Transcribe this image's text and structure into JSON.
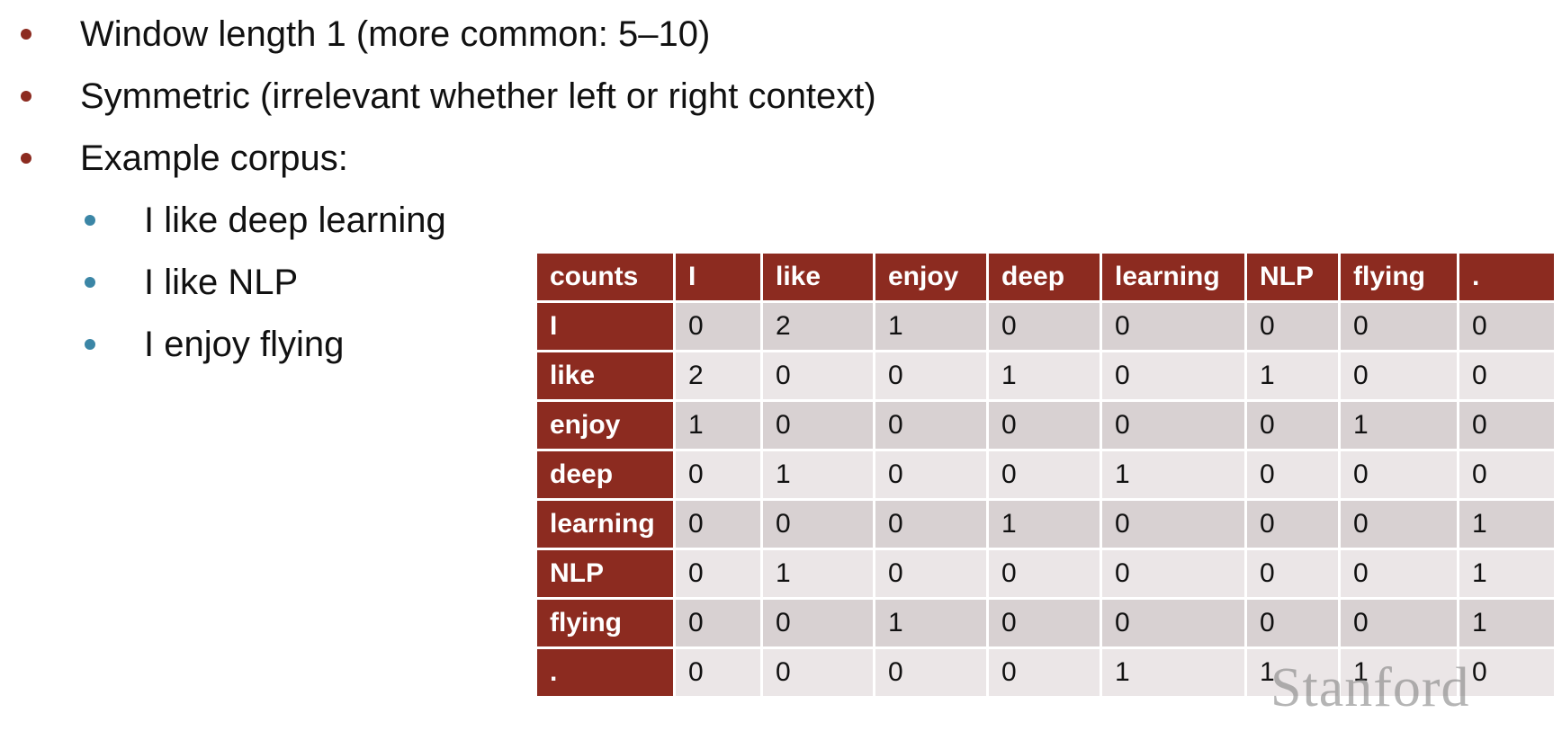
{
  "bullets": [
    {
      "text": "Window length 1 (more common: 5–10)"
    },
    {
      "text": "Symmetric (irrelevant whether left or right context)"
    },
    {
      "text": "Example corpus:"
    }
  ],
  "sub_bullets": [
    {
      "text": "I like deep learning"
    },
    {
      "text": "I like NLP"
    },
    {
      "text": "I enjoy flying"
    }
  ],
  "table": {
    "corner": "counts",
    "columns": [
      "I",
      "like",
      "enjoy",
      "deep",
      "learning",
      "NLP",
      "flying",
      "."
    ],
    "rows": [
      {
        "label": "I",
        "values": [
          "0",
          "2",
          "1",
          "0",
          "0",
          "0",
          "0",
          "0"
        ]
      },
      {
        "label": "like",
        "values": [
          "2",
          "0",
          "0",
          "1",
          "0",
          "1",
          "0",
          "0"
        ]
      },
      {
        "label": "enjoy",
        "values": [
          "1",
          "0",
          "0",
          "0",
          "0",
          "0",
          "1",
          "0"
        ]
      },
      {
        "label": "deep",
        "values": [
          "0",
          "1",
          "0",
          "0",
          "1",
          "0",
          "0",
          "0"
        ]
      },
      {
        "label": "learning",
        "values": [
          "0",
          "0",
          "0",
          "1",
          "0",
          "0",
          "0",
          "1"
        ]
      },
      {
        "label": "NLP",
        "values": [
          "0",
          "1",
          "0",
          "0",
          "0",
          "0",
          "0",
          "1"
        ]
      },
      {
        "label": "flying",
        "values": [
          "0",
          "0",
          "1",
          "0",
          "0",
          "0",
          "0",
          "1"
        ]
      },
      {
        "label": ".",
        "values": [
          "0",
          "0",
          "0",
          "0",
          "1",
          "1",
          "1",
          "0"
        ]
      }
    ]
  },
  "watermark": "Stanford",
  "colors": {
    "header_bg": "#8c2b20",
    "bullet_l1": "#8c2b20",
    "bullet_l2": "#3b86a6"
  }
}
